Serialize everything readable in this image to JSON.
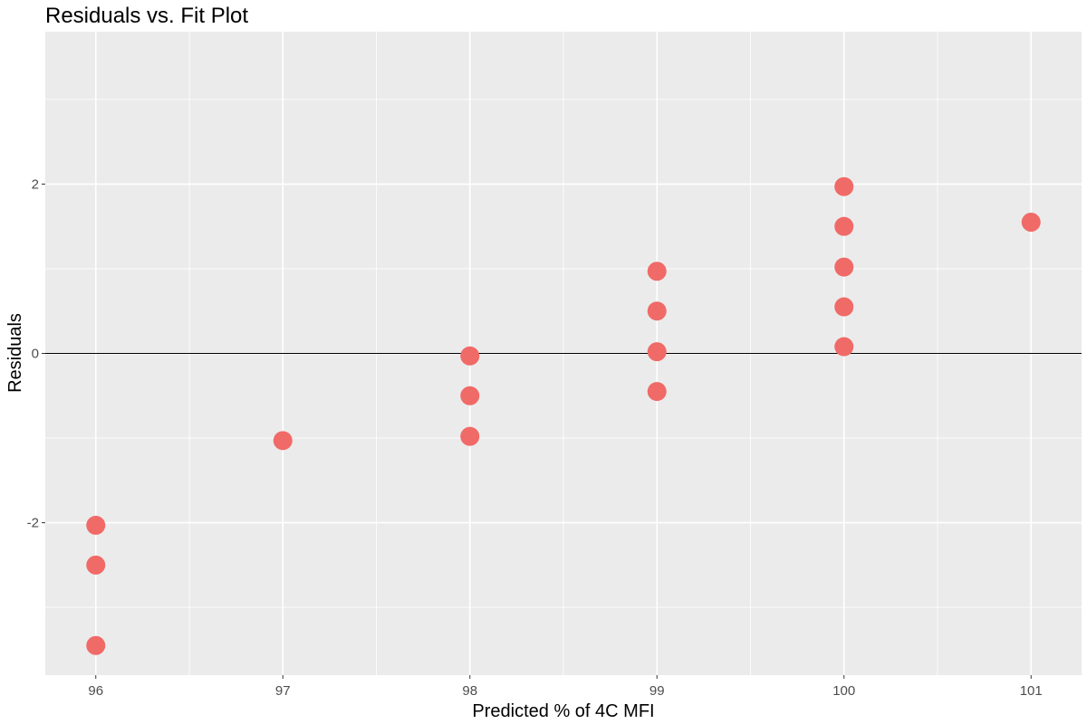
{
  "chart_data": {
    "type": "scatter",
    "title": "Residuals vs. Fit Plot",
    "xlabel": "Predicted % of 4C MFI",
    "ylabel": "Residuals",
    "xlim": [
      95.73,
      101.27
    ],
    "ylim": [
      -3.8,
      3.8
    ],
    "x_ticks": [
      96,
      97,
      98,
      99,
      100,
      101
    ],
    "x_tick_labels": [
      "96",
      "97",
      "98",
      "99",
      "100",
      "101"
    ],
    "y_ticks": [
      -2,
      0,
      2
    ],
    "y_tick_labels": [
      "-2",
      "0",
      "2"
    ],
    "reference_line": {
      "y": 0,
      "color": "#000000"
    },
    "grid": true,
    "panel_background": "#ebebeb",
    "grid_color": "#ffffff",
    "point_color": "#f06a67",
    "series": [
      {
        "x": [
          96,
          96,
          96,
          97,
          98,
          98,
          98,
          99,
          99,
          99,
          99,
          100,
          100,
          100,
          100,
          100,
          101
        ],
        "y": [
          -2.03,
          -2.5,
          -3.45,
          -1.03,
          -0.03,
          -0.5,
          -0.98,
          0.97,
          0.5,
          0.02,
          -0.45,
          1.97,
          1.5,
          1.02,
          0.55,
          0.08,
          1.55
        ]
      }
    ]
  }
}
